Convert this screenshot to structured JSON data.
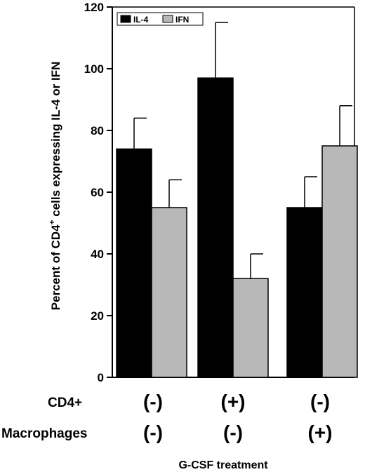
{
  "chart_data": {
    "type": "bar",
    "ylabel_main": "Percent of CD4",
    "ylabel_sup": "+",
    "ylabel_rest": " cells expressing IL-4 or IFN",
    "xlabel": "G-CSF treatment",
    "ylim": [
      0,
      120
    ],
    "yticks": [
      "0",
      "20",
      "40",
      "60",
      "80",
      "100",
      "120"
    ],
    "ytick_values": [
      0,
      20,
      40,
      60,
      80,
      100,
      120
    ],
    "row_labels": [
      "CD4+",
      "Macrophages"
    ],
    "groups": [
      {
        "cd4": "(-)",
        "macrophages": "(-)"
      },
      {
        "cd4": "(+)",
        "macrophages": "(-)"
      },
      {
        "cd4": "(-)",
        "macrophages": "(+)"
      }
    ],
    "series": [
      {
        "name": "IL-4",
        "color": "#000000",
        "values": [
          74,
          97,
          55
        ],
        "errors": [
          10,
          18,
          10
        ]
      },
      {
        "name": "IFN",
        "color": "#b8b8b8",
        "values": [
          55,
          32,
          75
        ],
        "errors": [
          9,
          8,
          13
        ]
      }
    ],
    "legend_position": "top-left",
    "grid": false
  }
}
